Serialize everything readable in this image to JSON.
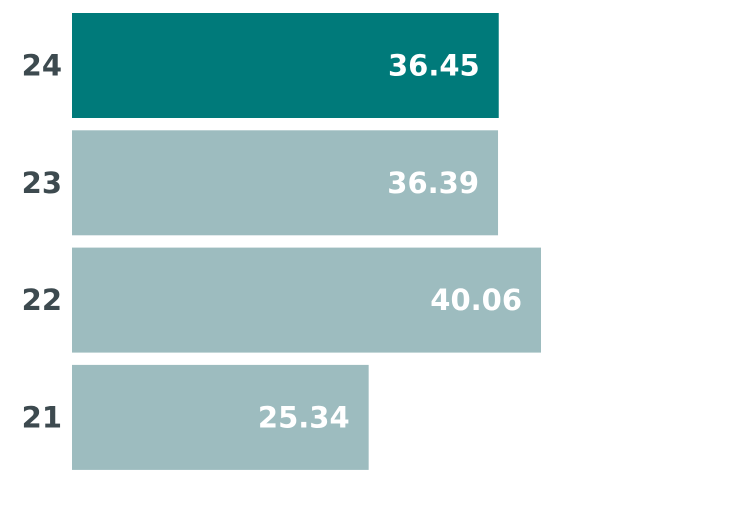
{
  "chart_data": {
    "type": "bar",
    "orientation": "horizontal",
    "categories": [
      "24",
      "23",
      "22",
      "21"
    ],
    "values": [
      36.45,
      36.39,
      40.06,
      25.34
    ],
    "colors": [
      "#007a7a",
      "#9dbcbf",
      "#9dbcbf",
      "#9dbcbf"
    ]
  }
}
